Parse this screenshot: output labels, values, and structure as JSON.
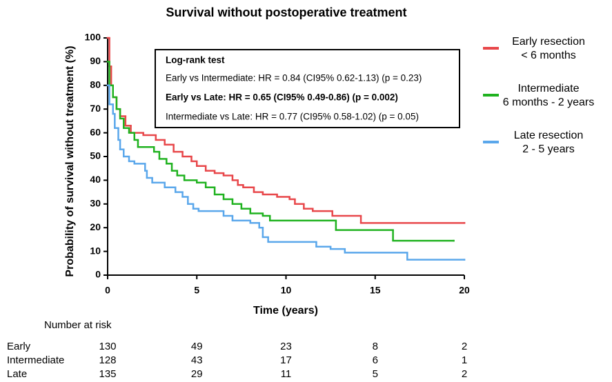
{
  "chart_data": {
    "type": "step",
    "title": "Survival without postoperative treatment",
    "x_label": "Time (years)",
    "y_label": "Probability of survival without treatment (%)",
    "xlim": [
      0,
      20
    ],
    "ylim": [
      0,
      100
    ],
    "xticks": [
      0,
      5,
      10,
      15,
      20
    ],
    "yticks": [
      0,
      10,
      20,
      30,
      40,
      50,
      60,
      70,
      80,
      90,
      100
    ],
    "series": [
      {
        "name": "Early resection",
        "period": "< 6 months",
        "color": "#e8474a",
        "x": [
          0,
          0.1,
          0.2,
          0.3,
          0.5,
          0.7,
          1,
          1.3,
          2,
          2.7,
          3.2,
          3.7,
          4.2,
          4.7,
          5,
          5.5,
          6,
          6.5,
          7,
          7.3,
          7.6,
          8.2,
          8.7,
          9.5,
          10.2,
          10.5,
          11,
          11.5,
          12.6,
          14.2,
          20
        ],
        "values": [
          100,
          88,
          80,
          75,
          70,
          67,
          63,
          60,
          59,
          57,
          55,
          52,
          50,
          48,
          46,
          44,
          43,
          42,
          40,
          38,
          37,
          35,
          34,
          33,
          32,
          30,
          28,
          27,
          25,
          22,
          22
        ]
      },
      {
        "name": "Intermediate",
        "period": "6 months - 2 years",
        "color": "#1fb21f",
        "x": [
          0,
          0.1,
          0.3,
          0.5,
          0.7,
          0.9,
          1.2,
          1.5,
          1.7,
          2.6,
          2.9,
          3.3,
          3.6,
          3.9,
          4.3,
          5,
          5.5,
          6,
          6.5,
          7,
          7.5,
          8,
          8.7,
          9.1,
          12.8,
          16,
          19.4
        ],
        "values": [
          90,
          80,
          75,
          70,
          66,
          62,
          60,
          57,
          54,
          52,
          49,
          47,
          44,
          42,
          40,
          39,
          37,
          34,
          32,
          30,
          28,
          26,
          25,
          23,
          19,
          14.5,
          14.5
        ]
      },
      {
        "name": "Late resection",
        "period": "2 - 5 years",
        "color": "#5aa7eb",
        "x": [
          0,
          0.1,
          0.3,
          0.4,
          0.6,
          0.7,
          0.9,
          1.2,
          1.5,
          2.1,
          2.2,
          2.5,
          3.2,
          3.8,
          4.2,
          4.5,
          4.8,
          5.1,
          6.5,
          7,
          8,
          8.5,
          8.7,
          9,
          11.7,
          12.5,
          13.3,
          16.8,
          20
        ],
        "values": [
          80,
          72,
          68,
          62,
          57,
          53,
          50,
          48,
          47,
          44,
          41,
          39,
          37,
          35,
          33,
          30,
          28,
          27,
          25,
          23,
          22,
          20,
          16,
          14,
          12,
          11,
          9.5,
          6.5,
          6.5
        ]
      }
    ],
    "annotation": {
      "title": "Log-rank test",
      "lines": [
        {
          "text": "Early vs Intermediate: HR = 0.84 (CI95% 0.62-1.13) (p = 0.23)",
          "bold": false
        },
        {
          "text": "Early vs Late: HR = 0.65 (CI95% 0.49-0.86) (p = 0.002)",
          "bold": true
        },
        {
          "text": "Intermediate vs Late: HR = 0.77 (CI95% 0.58-1.02)  (p = 0.05)",
          "bold": false
        }
      ]
    },
    "risk_table": {
      "title": "Number at risk",
      "rows": [
        {
          "name": "Early",
          "values": [
            130,
            49,
            23,
            8,
            2
          ]
        },
        {
          "name": "Intermediate",
          "values": [
            128,
            43,
            17,
            6,
            1
          ]
        },
        {
          "name": "Late",
          "values": [
            135,
            29,
            11,
            5,
            2
          ]
        }
      ]
    }
  }
}
